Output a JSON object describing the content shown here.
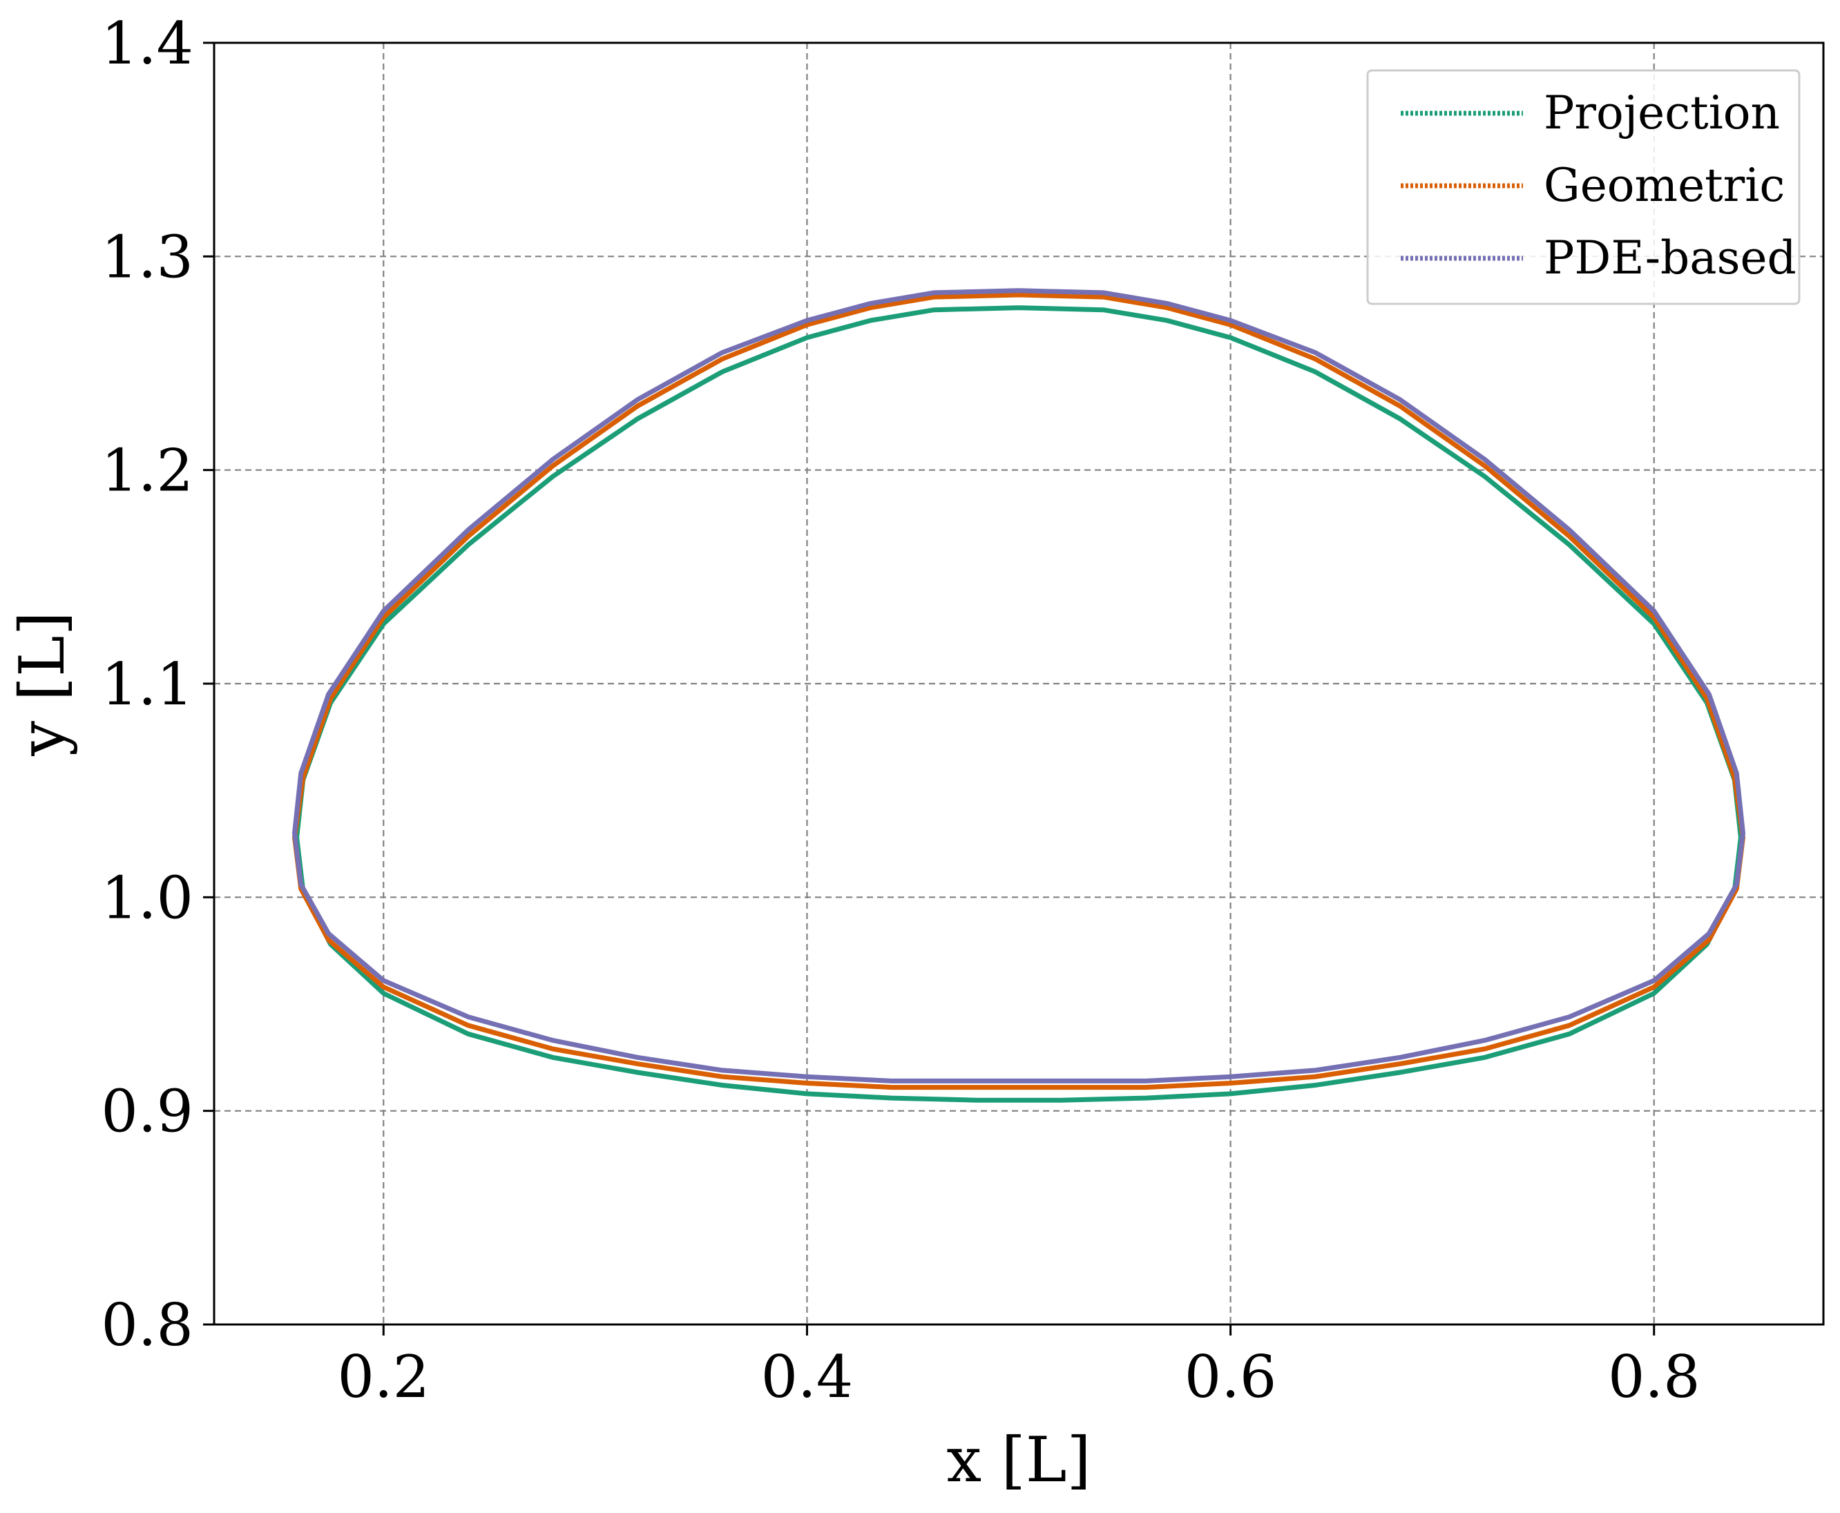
{
  "chart_data": {
    "type": "line",
    "title": "",
    "xlabel": "x [L]",
    "ylabel": "y [L]",
    "xlim": [
      0.12,
      0.88
    ],
    "ylim": [
      0.8,
      1.4
    ],
    "xticks": [
      0.2,
      0.4,
      0.6,
      0.8
    ],
    "yticks": [
      0.8,
      0.9,
      1.0,
      1.1,
      1.2,
      1.3,
      1.4
    ],
    "xtick_labels": [
      "0.2",
      "0.4",
      "0.6",
      "0.8"
    ],
    "ytick_labels": [
      "0.8",
      "0.9",
      "1.0",
      "1.1",
      "1.2",
      "1.3",
      "1.4"
    ],
    "grid": true,
    "legend_position": "top-right",
    "series": [
      {
        "name": "Projection",
        "color": "#1b9e77",
        "points": [
          [
            0.5,
            1.276
          ],
          [
            0.54,
            1.275
          ],
          [
            0.57,
            1.27
          ],
          [
            0.6,
            1.262
          ],
          [
            0.64,
            1.246
          ],
          [
            0.68,
            1.224
          ],
          [
            0.72,
            1.197
          ],
          [
            0.76,
            1.165
          ],
          [
            0.8,
            1.128
          ],
          [
            0.825,
            1.091
          ],
          [
            0.838,
            1.055
          ],
          [
            0.841,
            1.028
          ],
          [
            0.838,
            1.003
          ],
          [
            0.825,
            0.978
          ],
          [
            0.8,
            0.955
          ],
          [
            0.76,
            0.936
          ],
          [
            0.72,
            0.925
          ],
          [
            0.68,
            0.918
          ],
          [
            0.64,
            0.912
          ],
          [
            0.6,
            0.908
          ],
          [
            0.56,
            0.906
          ],
          [
            0.52,
            0.905
          ],
          [
            0.5,
            0.905
          ],
          [
            0.48,
            0.905
          ],
          [
            0.44,
            0.906
          ],
          [
            0.4,
            0.908
          ],
          [
            0.36,
            0.912
          ],
          [
            0.32,
            0.918
          ],
          [
            0.28,
            0.925
          ],
          [
            0.24,
            0.936
          ],
          [
            0.2,
            0.955
          ],
          [
            0.175,
            0.978
          ],
          [
            0.162,
            1.003
          ],
          [
            0.159,
            1.028
          ],
          [
            0.162,
            1.055
          ],
          [
            0.175,
            1.091
          ],
          [
            0.2,
            1.128
          ],
          [
            0.24,
            1.165
          ],
          [
            0.28,
            1.197
          ],
          [
            0.32,
            1.224
          ],
          [
            0.36,
            1.246
          ],
          [
            0.4,
            1.262
          ],
          [
            0.43,
            1.27
          ],
          [
            0.46,
            1.275
          ],
          [
            0.5,
            1.276
          ]
        ]
      },
      {
        "name": "Geometric",
        "color": "#d95f02",
        "points": [
          [
            0.5,
            1.282
          ],
          [
            0.54,
            1.281
          ],
          [
            0.57,
            1.276
          ],
          [
            0.6,
            1.268
          ],
          [
            0.64,
            1.252
          ],
          [
            0.68,
            1.23
          ],
          [
            0.72,
            1.202
          ],
          [
            0.76,
            1.169
          ],
          [
            0.8,
            1.131
          ],
          [
            0.825,
            1.093
          ],
          [
            0.838,
            1.056
          ],
          [
            0.842,
            1.028
          ],
          [
            0.839,
            1.004
          ],
          [
            0.826,
            0.98
          ],
          [
            0.8,
            0.958
          ],
          [
            0.76,
            0.94
          ],
          [
            0.72,
            0.929
          ],
          [
            0.68,
            0.922
          ],
          [
            0.64,
            0.916
          ],
          [
            0.6,
            0.913
          ],
          [
            0.56,
            0.911
          ],
          [
            0.52,
            0.911
          ],
          [
            0.5,
            0.911
          ],
          [
            0.48,
            0.911
          ],
          [
            0.44,
            0.911
          ],
          [
            0.4,
            0.913
          ],
          [
            0.36,
            0.916
          ],
          [
            0.32,
            0.922
          ],
          [
            0.28,
            0.929
          ],
          [
            0.24,
            0.94
          ],
          [
            0.2,
            0.958
          ],
          [
            0.174,
            0.98
          ],
          [
            0.161,
            1.004
          ],
          [
            0.158,
            1.028
          ],
          [
            0.162,
            1.056
          ],
          [
            0.175,
            1.093
          ],
          [
            0.2,
            1.131
          ],
          [
            0.24,
            1.169
          ],
          [
            0.28,
            1.202
          ],
          [
            0.32,
            1.23
          ],
          [
            0.36,
            1.252
          ],
          [
            0.4,
            1.268
          ],
          [
            0.43,
            1.276
          ],
          [
            0.46,
            1.281
          ],
          [
            0.5,
            1.282
          ]
        ]
      },
      {
        "name": "PDE-based",
        "color": "#7570b3",
        "points": [
          [
            0.5,
            1.284
          ],
          [
            0.54,
            1.283
          ],
          [
            0.57,
            1.278
          ],
          [
            0.6,
            1.27
          ],
          [
            0.64,
            1.255
          ],
          [
            0.68,
            1.233
          ],
          [
            0.72,
            1.205
          ],
          [
            0.76,
            1.172
          ],
          [
            0.8,
            1.134
          ],
          [
            0.826,
            1.095
          ],
          [
            0.839,
            1.058
          ],
          [
            0.842,
            1.03
          ],
          [
            0.839,
            1.006
          ],
          [
            0.826,
            0.983
          ],
          [
            0.8,
            0.961
          ],
          [
            0.76,
            0.944
          ],
          [
            0.72,
            0.933
          ],
          [
            0.68,
            0.925
          ],
          [
            0.64,
            0.919
          ],
          [
            0.6,
            0.916
          ],
          [
            0.56,
            0.914
          ],
          [
            0.52,
            0.914
          ],
          [
            0.5,
            0.914
          ],
          [
            0.48,
            0.914
          ],
          [
            0.44,
            0.914
          ],
          [
            0.4,
            0.916
          ],
          [
            0.36,
            0.919
          ],
          [
            0.32,
            0.925
          ],
          [
            0.28,
            0.933
          ],
          [
            0.24,
            0.944
          ],
          [
            0.2,
            0.961
          ],
          [
            0.174,
            0.983
          ],
          [
            0.161,
            1.006
          ],
          [
            0.158,
            1.03
          ],
          [
            0.161,
            1.058
          ],
          [
            0.174,
            1.095
          ],
          [
            0.2,
            1.134
          ],
          [
            0.24,
            1.172
          ],
          [
            0.28,
            1.205
          ],
          [
            0.32,
            1.233
          ],
          [
            0.36,
            1.255
          ],
          [
            0.4,
            1.27
          ],
          [
            0.43,
            1.278
          ],
          [
            0.46,
            1.283
          ],
          [
            0.5,
            1.284
          ]
        ]
      }
    ]
  }
}
